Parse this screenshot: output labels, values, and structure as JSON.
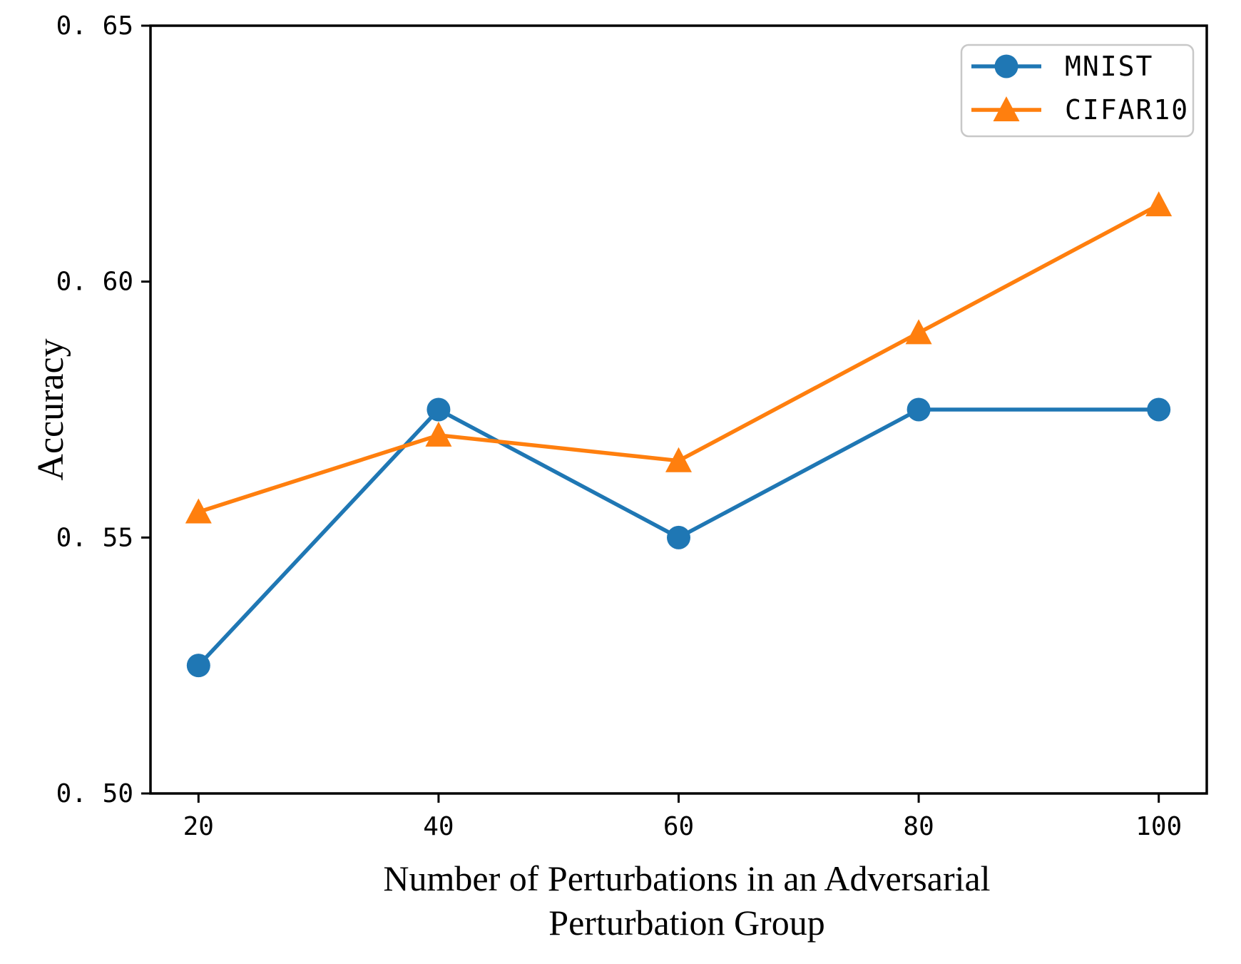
{
  "figure": {
    "background_color": "#ffffff",
    "axis_color": "#000000"
  },
  "chart_data": {
    "type": "line",
    "x": [
      20,
      40,
      60,
      80,
      100
    ],
    "x_tick_labels": [
      "20",
      "40",
      "60",
      "80",
      "100"
    ],
    "y_ticks": [
      0.5,
      0.55,
      0.6,
      0.65
    ],
    "y_tick_labels": [
      "0. 50",
      "0. 55",
      "0. 60",
      "0. 65"
    ],
    "xlim": [
      16,
      104
    ],
    "ylim": [
      0.5,
      0.65
    ],
    "grid": false,
    "title": "",
    "xlabel_line1": "Number of Perturbations in an Adversarial",
    "xlabel_line2": "Perturbation Group",
    "ylabel": "Accuracy",
    "legend_position": "upper right",
    "legend_border_color": "#c8c8c8",
    "legend_background": "#ffffff",
    "series": [
      {
        "name": "MNIST",
        "color": "#1f77b4",
        "marker": "circle",
        "values": [
          0.525,
          0.575,
          0.55,
          0.575,
          0.575
        ]
      },
      {
        "name": "CIFAR10",
        "color": "#ff7f0e",
        "marker": "triangle",
        "values": [
          0.555,
          0.57,
          0.565,
          0.59,
          0.615
        ]
      }
    ]
  }
}
